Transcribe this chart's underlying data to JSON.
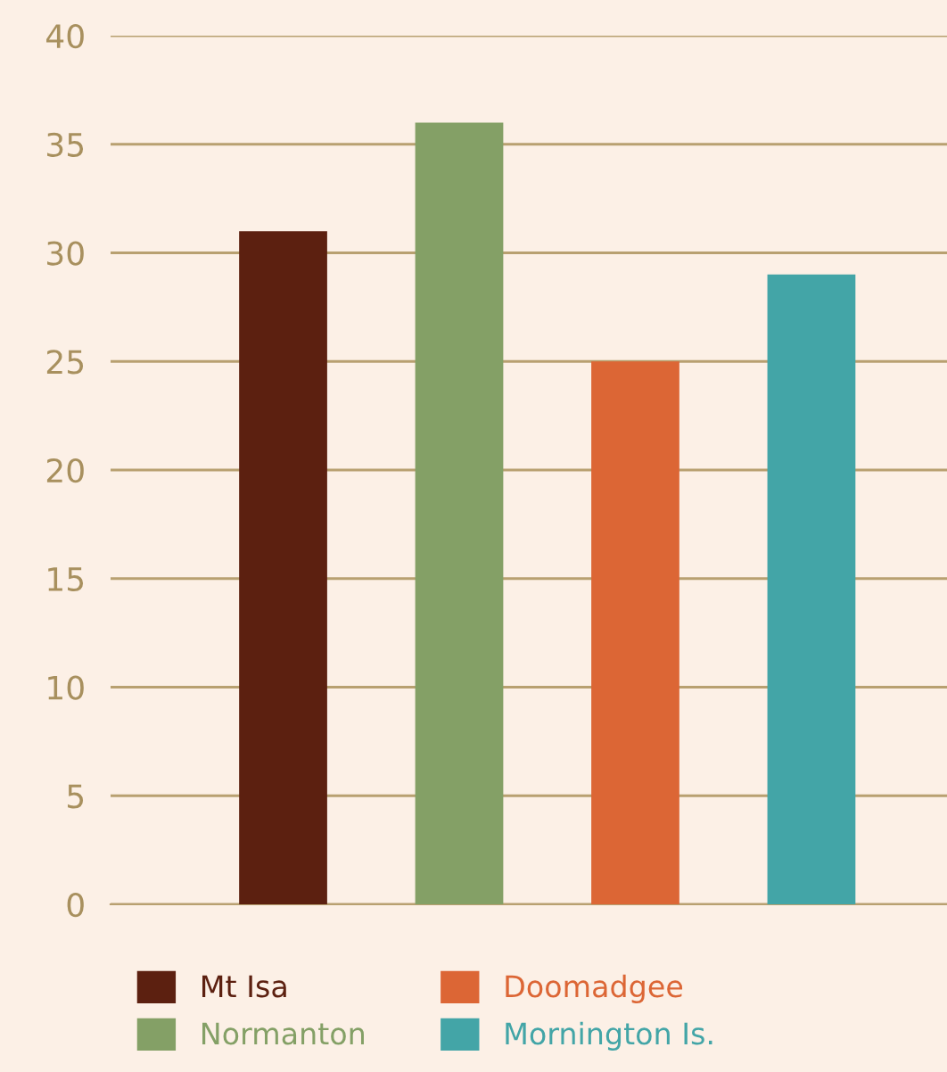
{
  "chart_data": {
    "type": "bar",
    "categories": [
      null,
      null,
      null,
      null
    ],
    "series": [
      {
        "name": "Mt Isa",
        "color": "#5c2010",
        "values": [
          31,
          null,
          null,
          null
        ]
      },
      {
        "name": "Normanton",
        "color": "#84a066",
        "values": [
          null,
          36,
          null,
          null
        ]
      },
      {
        "name": "Doomadgee",
        "color": "#dc6635",
        "values": [
          null,
          null,
          25,
          null
        ]
      },
      {
        "name": "Mornington Is.",
        "color": "#43a5a7",
        "values": [
          null,
          null,
          null,
          29
        ]
      }
    ],
    "ylim": [
      0,
      40
    ],
    "yticks": [
      0,
      5,
      10,
      15,
      20,
      25,
      30,
      35,
      40
    ],
    "grid": "y",
    "legend": "bottom"
  }
}
